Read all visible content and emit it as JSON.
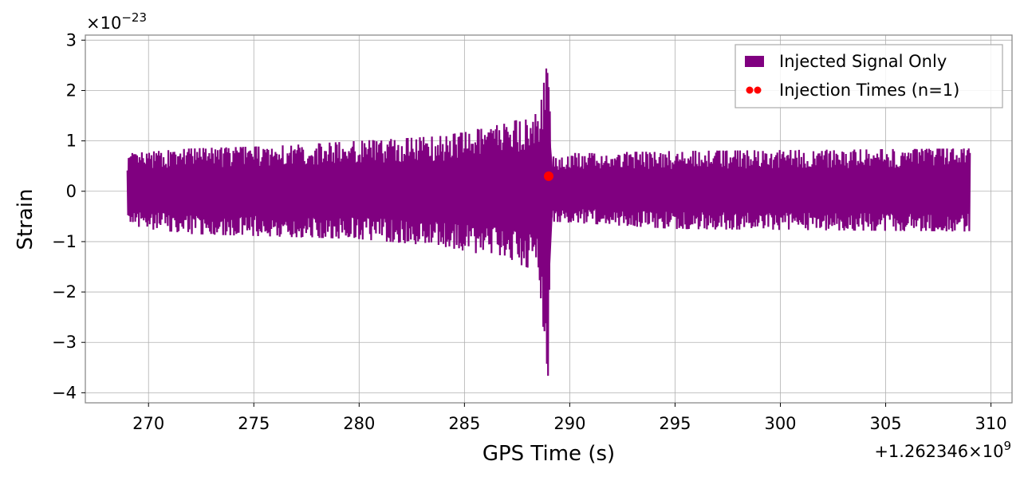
{
  "chart_data": {
    "type": "line",
    "xlabel": "GPS Time (s)",
    "ylabel": "Strain",
    "x_offset_text": "+1.262346×10",
    "x_offset_exp": "9",
    "y_scale_text": "×10",
    "y_scale_exp": "−23",
    "xlim": [
      267,
      311
    ],
    "ylim": [
      -4.2,
      3.1
    ],
    "xticks": [
      270,
      275,
      280,
      285,
      290,
      295,
      300,
      305,
      310
    ],
    "yticks": [
      -4,
      -3,
      -2,
      -1,
      0,
      1,
      2,
      3
    ],
    "ytick_labels": [
      "−4",
      "−3",
      "−2",
      "−1",
      "0",
      "1",
      "2",
      "3"
    ],
    "grid": true,
    "legend_position": "top-right",
    "series": [
      {
        "name": "Injected Signal Only",
        "color": "#800080",
        "x_start": 269.0,
        "x_end": 309.0,
        "envelope": [
          {
            "x": 269.0,
            "upper": 0.75,
            "lower": -0.7
          },
          {
            "x": 272.0,
            "upper": 0.85,
            "lower": -0.85
          },
          {
            "x": 276.0,
            "upper": 0.9,
            "lower": -0.9
          },
          {
            "x": 280.0,
            "upper": 1.0,
            "lower": -0.95
          },
          {
            "x": 284.0,
            "upper": 1.1,
            "lower": -1.1
          },
          {
            "x": 287.0,
            "upper": 1.35,
            "lower": -1.35
          },
          {
            "x": 288.5,
            "upper": 1.55,
            "lower": -1.6
          },
          {
            "x": 289.0,
            "upper": 2.7,
            "lower": -3.85
          },
          {
            "x": 289.1,
            "upper": 0.75,
            "lower": -0.6
          },
          {
            "x": 295.0,
            "upper": 0.8,
            "lower": -0.75
          },
          {
            "x": 309.0,
            "upper": 0.85,
            "lower": -0.8
          }
        ]
      },
      {
        "name": "Injection Times (n=1)",
        "color": "#ff0000",
        "type": "scatter",
        "points": [
          {
            "x": 289.0,
            "y": 0.3
          }
        ]
      }
    ]
  }
}
